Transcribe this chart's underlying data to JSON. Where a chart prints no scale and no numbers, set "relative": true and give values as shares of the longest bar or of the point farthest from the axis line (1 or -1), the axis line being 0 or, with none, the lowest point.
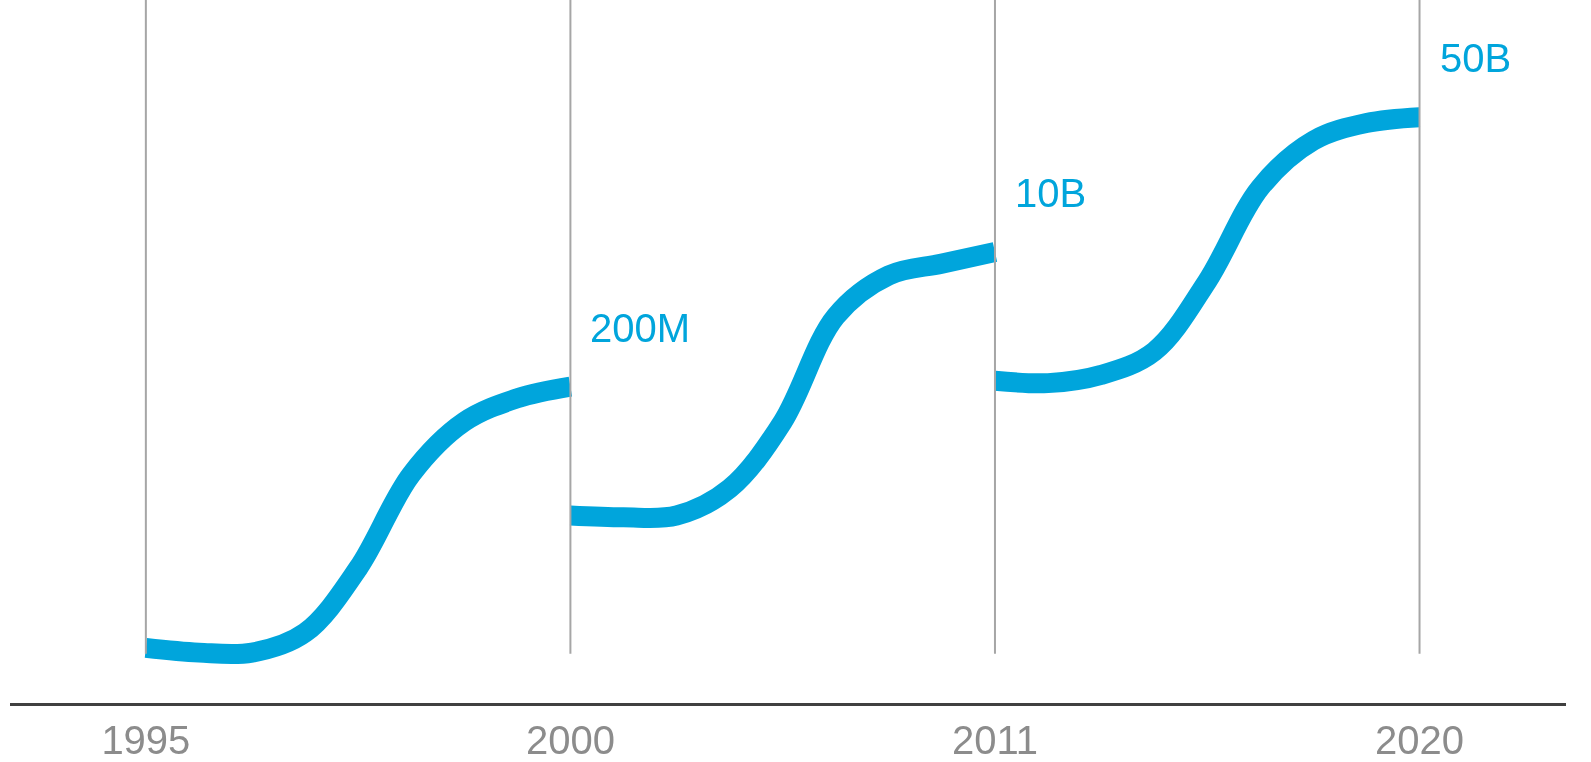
{
  "chart_data": {
    "type": "line",
    "relative": true,
    "categories": [
      "1995",
      null,
      null,
      null,
      null,
      null,
      null,
      null,
      "2000",
      null,
      null,
      null,
      null,
      null,
      null,
      null,
      "2011",
      null,
      null,
      null,
      null,
      null,
      null,
      null,
      "2020"
    ],
    "series": [
      {
        "color": "#00a5dc",
        "values": [
          0.094,
          0.086,
          0.086,
          0.12,
          0.23,
          0.39,
          0.48,
          0.52,
          0.54,
          null,
          null,
          null,
          null,
          null,
          null,
          null,
          null,
          null,
          null,
          null,
          null,
          null,
          null,
          null,
          null
        ]
      },
      {
        "color": "#00a5dc",
        "values": [
          null,
          null,
          null,
          null,
          null,
          null,
          null,
          null,
          0.32,
          0.317,
          0.32,
          0.366,
          0.48,
          0.66,
          0.73,
          0.75,
          0.77,
          null,
          null,
          null,
          null,
          null,
          null,
          null,
          null
        ]
      },
      {
        "color": "#00a5dc",
        "values": [
          null,
          null,
          null,
          null,
          null,
          null,
          null,
          null,
          null,
          null,
          null,
          null,
          null,
          null,
          null,
          null,
          0.55,
          0.546,
          0.56,
          0.6,
          0.72,
          0.88,
          0.96,
          0.99,
          1.0
        ]
      }
    ],
    "ref_lines": [
      {
        "axis": "x",
        "value": "1995",
        "color": "#a6a6a6"
      },
      {
        "axis": "x",
        "value": "2000",
        "color": "#a6a6a6"
      },
      {
        "axis": "x",
        "value": "2011",
        "color": "#a6a6a6"
      },
      {
        "axis": "x",
        "value": "2020",
        "color": "#a6a6a6"
      }
    ],
    "annotations": [
      {
        "text": "200M",
        "x": "2000",
        "y": 0.54
      },
      {
        "text": "10B",
        "x": "2011",
        "y": 0.77
      },
      {
        "text": "50B",
        "x": "2020",
        "y": 1.0
      }
    ],
    "marker": "none",
    "line_style": "solid"
  }
}
